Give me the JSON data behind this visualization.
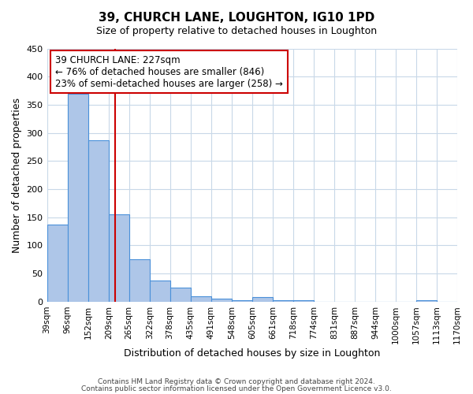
{
  "title": "39, CHURCH LANE, LOUGHTON, IG10 1PD",
  "subtitle": "Size of property relative to detached houses in Loughton",
  "xlabel": "Distribution of detached houses by size in Loughton",
  "ylabel": "Number of detached properties",
  "bar_color": "#aec6e8",
  "bar_edge_color": "#4a90d9",
  "background_color": "#ffffff",
  "grid_color": "#c8d8e8",
  "bins": [
    39,
    96,
    152,
    209,
    265,
    322,
    378,
    435,
    491,
    548,
    605,
    661,
    718,
    774,
    831,
    887,
    944,
    1000,
    1057,
    1113,
    1170
  ],
  "bin_labels": [
    "39sqm",
    "96sqm",
    "152sqm",
    "209sqm",
    "265sqm",
    "322sqm",
    "378sqm",
    "435sqm",
    "491sqm",
    "548sqm",
    "605sqm",
    "661sqm",
    "718sqm",
    "774sqm",
    "831sqm",
    "887sqm",
    "944sqm",
    "1000sqm",
    "1057sqm",
    "1113sqm",
    "1170sqm"
  ],
  "values": [
    137,
    370,
    287,
    155,
    75,
    38,
    25,
    10,
    5,
    2,
    8,
    2,
    2,
    0,
    0,
    0,
    0,
    0,
    3,
    0
  ],
  "ylim": [
    0,
    450
  ],
  "yticks": [
    0,
    50,
    100,
    150,
    200,
    250,
    300,
    350,
    400,
    450
  ],
  "property_line_x": 227,
  "property_line_color": "#cc0000",
  "annotation_box_color": "#cc0000",
  "annotation_text": "39 CHURCH LANE: 227sqm\n← 76% of detached houses are smaller (846)\n23% of semi-detached houses are larger (258) →",
  "footer_line1": "Contains HM Land Registry data © Crown copyright and database right 2024.",
  "footer_line2": "Contains public sector information licensed under the Open Government Licence v3.0."
}
